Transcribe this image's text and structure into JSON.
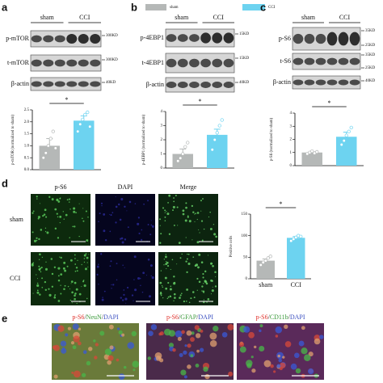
{
  "legend": {
    "sham": "sham",
    "CCI": "CCI",
    "sham_color": "#b5b8b7",
    "CCI_color": "#6dd3f0"
  },
  "panels": [
    {
      "label": "a",
      "groups": [
        "sham",
        "CCI"
      ],
      "rows": [
        "p-mTOR",
        "t-mTOR",
        "β-actin"
      ],
      "markers": [
        "300KD",
        "300KD",
        "40KD"
      ]
    },
    {
      "label": "b",
      "groups": [
        "sham",
        "CCI"
      ],
      "rows": [
        "p-4EBP1",
        "t-4EBP1",
        "β-actin"
      ],
      "markers": [
        "15KD",
        "15KD",
        "40KD"
      ]
    },
    {
      "label": "c",
      "groups": [
        "sham",
        "CCI"
      ],
      "rows": [
        "p-S6",
        "t-S6",
        "β-actin"
      ],
      "markers": [
        "35KD",
        "25KD",
        "35KD",
        "25KD",
        "40KD"
      ]
    }
  ],
  "panel_d": {
    "label": "d",
    "columns": [
      "p-S6",
      "DAPI",
      "Merge"
    ],
    "rows": [
      "sham",
      "CCI"
    ]
  },
  "panel_e": {
    "label": "e",
    "images": [
      [
        {
          "text": "p-S6",
          "color": "#e0302a"
        },
        {
          "text": "/",
          "color": "#333"
        },
        {
          "text": "NeuN",
          "color": "#3a9a3a"
        },
        {
          "text": "/",
          "color": "#333"
        },
        {
          "text": "DAPI",
          "color": "#3a4fc0"
        }
      ],
      [
        {
          "text": "p-S6",
          "color": "#e0302a"
        },
        {
          "text": "/",
          "color": "#333"
        },
        {
          "text": "GFAP",
          "color": "#3a9a3a"
        },
        {
          "text": "/",
          "color": "#333"
        },
        {
          "text": "DAPI",
          "color": "#3a4fc0"
        }
      ],
      [
        {
          "text": "p-S6",
          "color": "#e0302a"
        },
        {
          "text": "/",
          "color": "#333"
        },
        {
          "text": "CD11b",
          "color": "#3a9a3a"
        },
        {
          "text": "/",
          "color": "#333"
        },
        {
          "text": "DAPI",
          "color": "#3a4fc0"
        }
      ]
    ]
  },
  "chart_data": [
    {
      "type": "bar",
      "y_label": "p-mTOR (normalized to sham)",
      "categories": [
        null,
        null
      ],
      "values": [
        1.0,
        2.05
      ],
      "errors": [
        0.3,
        0.2
      ],
      "points": [
        [
          0.5,
          0.7,
          1.0,
          1.3,
          1.6,
          0.9
        ],
        [
          1.6,
          1.9,
          2.1,
          2.3,
          2.4,
          1.8
        ]
      ],
      "colors": [
        "#b5b8b7",
        "#6dd3f0"
      ],
      "annotation": "*",
      "ylim": [
        0,
        2.5
      ],
      "yticks": [
        {
          "value": 0,
          "label": "0.0"
        },
        {
          "value": 0.5,
          "label": "0.5"
        },
        {
          "value": 1,
          "label": "1.0"
        },
        {
          "value": 1.5,
          "label": "1.5"
        },
        {
          "value": 2,
          "label": "2.0"
        },
        {
          "value": 2.5,
          "label": "2.5"
        }
      ]
    },
    {
      "type": "bar",
      "y_label": "p-4EBP1 (normalized to sham)",
      "categories": [
        null,
        null
      ],
      "values": [
        1.0,
        2.35
      ],
      "errors": [
        0.35,
        0.4
      ],
      "points": [
        [
          0.5,
          0.7,
          1.0,
          1.5,
          1.8
        ],
        [
          1.3,
          2.0,
          2.5,
          3.0,
          3.4
        ]
      ],
      "colors": [
        "#b5b8b7",
        "#6dd3f0"
      ],
      "annotation": "*",
      "ylim": [
        0,
        4
      ],
      "yticks": [
        0,
        1,
        2,
        3,
        4
      ]
    },
    {
      "type": "bar",
      "y_label": "p-S6 (normalized to sham)",
      "categories": [
        null,
        null
      ],
      "values": [
        1.0,
        2.2
      ],
      "errors": [
        0.05,
        0.35
      ],
      "points": [
        [
          0.9,
          1.0,
          1.1,
          0.95,
          1.05
        ],
        [
          1.6,
          1.9,
          2.3,
          2.6,
          2.9
        ]
      ],
      "colors": [
        "#b5b8b7",
        "#6dd3f0"
      ],
      "annotation": "*",
      "ylim": [
        0,
        4
      ],
      "yticks": [
        0,
        1,
        2,
        3,
        4
      ]
    },
    {
      "type": "bar",
      "y_label": "Positive cells",
      "categories": [
        "sham",
        "CCI"
      ],
      "values": [
        42,
        95
      ],
      "errors": [
        4,
        3
      ],
      "points": [
        [
          32,
          38,
          42,
          48,
          52
        ],
        [
          88,
          92,
          96,
          100,
          98
        ]
      ],
      "colors": [
        "#b5b8b7",
        "#6dd3f0"
      ],
      "annotation": "*",
      "ylim": [
        0,
        150
      ],
      "yticks": [
        0,
        50,
        100,
        150
      ]
    }
  ]
}
